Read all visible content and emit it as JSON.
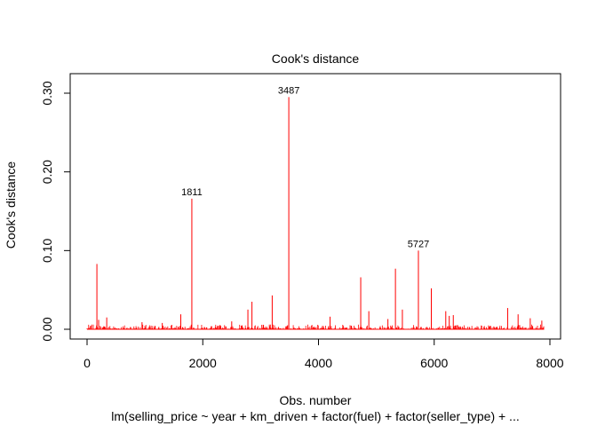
{
  "chart_data": {
    "type": "bar",
    "title": "Cook's distance",
    "xlabel": "Obs. number",
    "ylabel": "Cook's distance",
    "subtitle": "lm(selling_price ~ year + km_driven + factor(fuel) + factor(seller_type) +  ...",
    "xlim": [
      0,
      7900
    ],
    "ylim": [
      0,
      0.32
    ],
    "x_ticks": [
      0,
      2000,
      4000,
      6000,
      8000
    ],
    "x_tick_labels": [
      "0",
      "2000",
      "4000",
      "6000",
      "8000"
    ],
    "y_ticks": [
      0.0,
      0.1,
      0.2,
      0.3
    ],
    "y_tick_labels": [
      "0.00",
      "0.10",
      "0.20",
      "0.30"
    ],
    "color": "#ff0000",
    "grid": false,
    "labeled_points": [
      {
        "x": 3487,
        "y": 0.295,
        "label": "3487"
      },
      {
        "x": 1811,
        "y": 0.166,
        "label": "1811"
      },
      {
        "x": 5727,
        "y": 0.1,
        "label": "5727"
      }
    ],
    "spikes": [
      {
        "x": 170,
        "y": 0.083
      },
      {
        "x": 200,
        "y": 0.012
      },
      {
        "x": 340,
        "y": 0.015
      },
      {
        "x": 950,
        "y": 0.009
      },
      {
        "x": 1300,
        "y": 0.008
      },
      {
        "x": 1620,
        "y": 0.019
      },
      {
        "x": 2500,
        "y": 0.01
      },
      {
        "x": 2780,
        "y": 0.025
      },
      {
        "x": 2850,
        "y": 0.035
      },
      {
        "x": 3200,
        "y": 0.043
      },
      {
        "x": 4200,
        "y": 0.016
      },
      {
        "x": 4730,
        "y": 0.066
      },
      {
        "x": 4870,
        "y": 0.023
      },
      {
        "x": 5200,
        "y": 0.013
      },
      {
        "x": 5330,
        "y": 0.077
      },
      {
        "x": 5450,
        "y": 0.025
      },
      {
        "x": 5950,
        "y": 0.052
      },
      {
        "x": 6200,
        "y": 0.023
      },
      {
        "x": 6260,
        "y": 0.017
      },
      {
        "x": 6330,
        "y": 0.018
      },
      {
        "x": 7270,
        "y": 0.027
      },
      {
        "x": 7450,
        "y": 0.019
      },
      {
        "x": 7660,
        "y": 0.014
      },
      {
        "x": 7860,
        "y": 0.011
      }
    ],
    "baseline_noise_max": 0.006,
    "n_observations": 7900
  }
}
